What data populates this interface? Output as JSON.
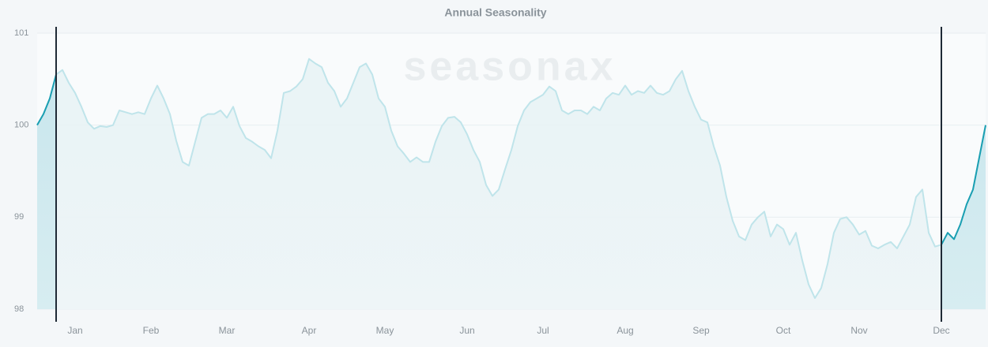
{
  "chart_data": {
    "type": "line",
    "title": "Annual Seasonality",
    "watermark": "seasonax",
    "categories": [
      null,
      null,
      null,
      null,
      null,
      null,
      "Jan",
      null,
      null,
      null,
      null,
      null,
      null,
      null,
      null,
      null,
      null,
      null,
      "Feb",
      null,
      null,
      null,
      null,
      null,
      null,
      null,
      null,
      null,
      null,
      null,
      "Mar",
      null,
      null,
      null,
      null,
      null,
      null,
      null,
      null,
      null,
      null,
      null,
      null,
      "Apr",
      null,
      null,
      null,
      null,
      null,
      null,
      null,
      null,
      null,
      null,
      null,
      "May",
      null,
      null,
      null,
      null,
      null,
      null,
      null,
      null,
      null,
      null,
      null,
      null,
      "Jun",
      null,
      null,
      null,
      null,
      null,
      null,
      null,
      null,
      null,
      null,
      null,
      "Jul",
      null,
      null,
      null,
      null,
      null,
      null,
      null,
      null,
      null,
      null,
      null,
      null,
      "Aug",
      null,
      null,
      null,
      null,
      null,
      null,
      null,
      null,
      null,
      null,
      null,
      "Sep",
      null,
      null,
      null,
      null,
      null,
      null,
      null,
      null,
      null,
      null,
      null,
      null,
      "Oct",
      null,
      null,
      null,
      null,
      null,
      null,
      null,
      null,
      null,
      null,
      null,
      "Nov",
      null,
      null,
      null,
      null,
      null,
      null,
      null,
      null,
      null,
      null,
      null,
      null,
      "Dec",
      null,
      null,
      null,
      null,
      null,
      null,
      null
    ],
    "series": [
      {
        "color": "#bfe4ea",
        "values": [
          100.0,
          100.12,
          100.29,
          100.55,
          100.6,
          100.46,
          100.35,
          100.2,
          100.03,
          99.96,
          99.99,
          99.98,
          100.0,
          100.16,
          100.14,
          100.12,
          100.14,
          100.12,
          100.29,
          100.43,
          100.29,
          100.12,
          99.83,
          99.6,
          99.56,
          99.82,
          100.08,
          100.12,
          100.12,
          100.16,
          100.08,
          100.2,
          99.99,
          99.86,
          99.82,
          99.77,
          99.73,
          99.64,
          99.94,
          100.35,
          100.37,
          100.42,
          100.5,
          100.72,
          100.67,
          100.63,
          100.46,
          100.37,
          100.2,
          100.29,
          100.46,
          100.63,
          100.67,
          100.55,
          100.29,
          100.2,
          99.94,
          99.77,
          99.69,
          99.6,
          99.65,
          99.6,
          99.6,
          99.82,
          99.99,
          100.08,
          100.09,
          100.03,
          99.9,
          99.73,
          99.6,
          99.35,
          99.23,
          99.3,
          99.52,
          99.73,
          99.99,
          100.16,
          100.25,
          100.29,
          100.33,
          100.42,
          100.37,
          100.16,
          100.12,
          100.16,
          100.16,
          100.12,
          100.2,
          100.16,
          100.29,
          100.35,
          100.33,
          100.43,
          100.33,
          100.37,
          100.35,
          100.43,
          100.35,
          100.33,
          100.37,
          100.5,
          100.59,
          100.37,
          100.2,
          100.06,
          100.03,
          99.77,
          99.56,
          99.22,
          98.96,
          98.79,
          98.75,
          98.92,
          99.0,
          99.06,
          98.79,
          98.92,
          98.87,
          98.7,
          98.83,
          98.53,
          98.27,
          98.12,
          98.23,
          98.49,
          98.83,
          98.98,
          99.0,
          98.92,
          98.81,
          98.85,
          98.69,
          98.66,
          98.7,
          98.73,
          98.66,
          98.79,
          98.92,
          99.22,
          99.3,
          98.83,
          98.68,
          98.7,
          98.83,
          98.76,
          98.92,
          99.14,
          99.3,
          99.65,
          100.0
        ]
      },
      {
        "color": "#1a9fb2",
        "values": [
          100.0,
          100.12,
          100.29,
          100.55,
          null,
          null,
          null,
          null,
          null,
          null,
          null,
          null,
          null,
          null,
          null,
          null,
          null,
          null,
          null,
          null,
          null,
          null,
          null,
          null,
          null,
          null,
          null,
          null,
          null,
          null,
          null,
          null,
          null,
          null,
          null,
          null,
          null,
          null,
          null,
          null,
          null,
          null,
          null,
          null,
          null,
          null,
          null,
          null,
          null,
          null,
          null,
          null,
          null,
          null,
          null,
          null,
          null,
          null,
          null,
          null,
          null,
          null,
          null,
          null,
          null,
          null,
          null,
          null,
          null,
          null,
          null,
          null,
          null,
          null,
          null,
          null,
          null,
          null,
          null,
          null,
          null,
          null,
          null,
          null,
          null,
          null,
          null,
          null,
          null,
          null,
          null,
          null,
          null,
          null,
          null,
          null,
          null,
          null,
          null,
          null,
          null,
          null,
          null,
          null,
          null,
          null,
          null,
          null,
          null,
          null,
          null,
          null,
          null,
          null,
          null,
          null,
          null,
          null,
          null,
          null,
          null,
          null,
          null,
          null,
          null,
          null,
          null,
          null,
          null,
          null,
          null,
          null,
          null,
          null,
          null,
          null,
          null,
          null,
          null,
          null,
          null,
          null,
          null,
          98.7,
          98.83,
          98.76,
          98.92,
          99.14,
          99.3,
          99.65,
          100.0
        ]
      }
    ],
    "ylim": [
      98,
      101
    ],
    "yticks": [
      98,
      99,
      100,
      101
    ],
    "grid": true
  }
}
